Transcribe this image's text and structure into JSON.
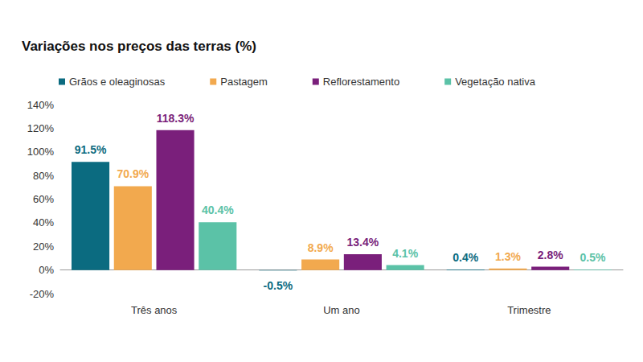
{
  "chart_data": {
    "type": "bar",
    "title": "Variações nos preços das terras (%)",
    "categories": [
      "Três anos",
      "Um ano",
      "Trimestre"
    ],
    "series": [
      {
        "name": "Grãos e oleaginosas",
        "color": "#0b6b80",
        "values": [
          91.5,
          -0.5,
          0.4
        ],
        "value_labels": [
          "91.5%",
          "-0.5%",
          "0.4%"
        ]
      },
      {
        "name": "Pastagem",
        "color": "#f2a94e",
        "values": [
          70.9,
          8.9,
          1.3
        ],
        "value_labels": [
          "70.9%",
          "8.9%",
          "1.3%"
        ]
      },
      {
        "name": "Reflorestamento",
        "color": "#7a1f7b",
        "values": [
          118.3,
          13.4,
          2.8
        ],
        "value_labels": [
          "118.3%",
          "13.4%",
          "2.8%"
        ]
      },
      {
        "name": "Vegetação nativa",
        "color": "#5bc2a7",
        "values": [
          40.4,
          4.1,
          0.5
        ],
        "value_labels": [
          "40.4%",
          "4.1%",
          "0.5%"
        ]
      }
    ],
    "ylim": [
      -20,
      140
    ],
    "yticks": [
      {
        "value": -20,
        "label": "-20%"
      },
      {
        "value": 0,
        "label": "0%"
      },
      {
        "value": 20,
        "label": "20%"
      },
      {
        "value": 40,
        "label": "40%"
      },
      {
        "value": 60,
        "label": "60%"
      },
      {
        "value": 80,
        "label": "80%"
      },
      {
        "value": 100,
        "label": "100%"
      },
      {
        "value": 120,
        "label": "120%"
      },
      {
        "value": 140,
        "label": "140%"
      }
    ],
    "grid": false,
    "legend": "top-left",
    "data_labels": true
  }
}
